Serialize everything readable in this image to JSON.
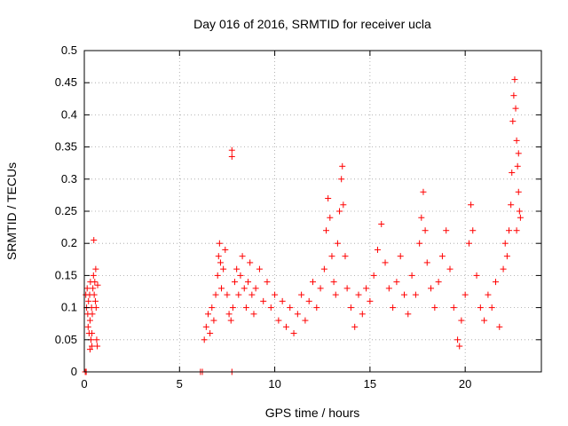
{
  "chart_data": {
    "type": "scatter",
    "title": "Day 016 of 2016, SRMTID for receiver ucla",
    "xlabel": "GPS time / hours",
    "ylabel": "SRMTID / TECUs",
    "xlim": [
      0,
      24
    ],
    "ylim": [
      0,
      0.5
    ],
    "xticks": [
      0,
      5,
      10,
      15,
      20
    ],
    "xtick_labels": [
      "0",
      "5",
      "10",
      "15",
      "20"
    ],
    "yticks": [
      0,
      0.05,
      0.1,
      0.15,
      0.2,
      0.25,
      0.3,
      0.35,
      0.4,
      0.45,
      0.5
    ],
    "ytick_labels": [
      "0",
      "0.05",
      "0.1",
      "0.15",
      "0.2",
      "0.25",
      "0.3",
      "0.35",
      "0.4",
      "0.45",
      "0.5"
    ],
    "grid": true,
    "marker": "+",
    "color": "#ff0000",
    "series": [
      {
        "points": [
          [
            0.05,
            0.0
          ],
          [
            0.1,
            0.0
          ],
          [
            0.08,
            0.12
          ],
          [
            0.12,
            0.1
          ],
          [
            0.15,
            0.13
          ],
          [
            0.18,
            0.09
          ],
          [
            0.2,
            0.07
          ],
          [
            0.22,
            0.11
          ],
          [
            0.25,
            0.06
          ],
          [
            0.28,
            0.12
          ],
          [
            0.3,
            0.08
          ],
          [
            0.32,
            0.14
          ],
          [
            0.35,
            0.05
          ],
          [
            0.38,
            0.1
          ],
          [
            0.4,
            0.06
          ],
          [
            0.42,
            0.09
          ],
          [
            0.45,
            0.13
          ],
          [
            0.48,
            0.15
          ],
          [
            0.5,
            0.205
          ],
          [
            0.52,
            0.12
          ],
          [
            0.55,
            0.14
          ],
          [
            0.58,
            0.11
          ],
          [
            0.6,
            0.16
          ],
          [
            0.62,
            0.1
          ],
          [
            0.65,
            0.05
          ],
          [
            0.68,
            0.04
          ],
          [
            0.7,
            0.135
          ],
          [
            0.3,
            0.035
          ],
          [
            0.4,
            0.04
          ],
          [
            6.1,
            0.0
          ],
          [
            6.2,
            0.0
          ],
          [
            7.75,
            0.0
          ],
          [
            6.3,
            0.05
          ],
          [
            6.4,
            0.07
          ],
          [
            6.5,
            0.09
          ],
          [
            6.6,
            0.06
          ],
          [
            6.7,
            0.1
          ],
          [
            6.8,
            0.08
          ],
          [
            6.9,
            0.12
          ],
          [
            7.0,
            0.15
          ],
          [
            7.05,
            0.18
          ],
          [
            7.1,
            0.2
          ],
          [
            7.15,
            0.17
          ],
          [
            7.2,
            0.13
          ],
          [
            7.3,
            0.16
          ],
          [
            7.4,
            0.19
          ],
          [
            7.5,
            0.12
          ],
          [
            7.6,
            0.09
          ],
          [
            7.7,
            0.08
          ],
          [
            7.75,
            0.335
          ],
          [
            7.75,
            0.345
          ],
          [
            7.8,
            0.1
          ],
          [
            7.9,
            0.14
          ],
          [
            8.0,
            0.16
          ],
          [
            8.1,
            0.12
          ],
          [
            8.2,
            0.15
          ],
          [
            8.3,
            0.18
          ],
          [
            8.4,
            0.13
          ],
          [
            8.5,
            0.1
          ],
          [
            8.6,
            0.14
          ],
          [
            8.7,
            0.17
          ],
          [
            8.8,
            0.12
          ],
          [
            8.9,
            0.09
          ],
          [
            9.0,
            0.13
          ],
          [
            9.2,
            0.16
          ],
          [
            9.4,
            0.11
          ],
          [
            9.6,
            0.14
          ],
          [
            9.8,
            0.1
          ],
          [
            10.0,
            0.12
          ],
          [
            10.2,
            0.08
          ],
          [
            10.4,
            0.11
          ],
          [
            10.6,
            0.07
          ],
          [
            10.8,
            0.1
          ],
          [
            11.0,
            0.06
          ],
          [
            11.2,
            0.09
          ],
          [
            11.4,
            0.12
          ],
          [
            11.6,
            0.08
          ],
          [
            11.8,
            0.11
          ],
          [
            12.0,
            0.14
          ],
          [
            12.2,
            0.1
          ],
          [
            12.4,
            0.13
          ],
          [
            12.6,
            0.16
          ],
          [
            12.7,
            0.22
          ],
          [
            12.8,
            0.27
          ],
          [
            12.9,
            0.24
          ],
          [
            13.0,
            0.18
          ],
          [
            13.1,
            0.14
          ],
          [
            13.2,
            0.12
          ],
          [
            13.3,
            0.2
          ],
          [
            13.4,
            0.25
          ],
          [
            13.5,
            0.3
          ],
          [
            13.55,
            0.32
          ],
          [
            13.6,
            0.26
          ],
          [
            13.7,
            0.18
          ],
          [
            13.8,
            0.13
          ],
          [
            14.0,
            0.1
          ],
          [
            14.2,
            0.07
          ],
          [
            14.4,
            0.12
          ],
          [
            14.6,
            0.09
          ],
          [
            14.8,
            0.13
          ],
          [
            15.0,
            0.11
          ],
          [
            15.2,
            0.15
          ],
          [
            15.4,
            0.19
          ],
          [
            15.6,
            0.23
          ],
          [
            15.8,
            0.17
          ],
          [
            16.0,
            0.13
          ],
          [
            16.2,
            0.1
          ],
          [
            16.4,
            0.14
          ],
          [
            16.6,
            0.18
          ],
          [
            16.8,
            0.12
          ],
          [
            17.0,
            0.09
          ],
          [
            17.2,
            0.15
          ],
          [
            17.4,
            0.12
          ],
          [
            17.6,
            0.2
          ],
          [
            17.7,
            0.24
          ],
          [
            17.8,
            0.28
          ],
          [
            17.9,
            0.22
          ],
          [
            18.0,
            0.17
          ],
          [
            18.2,
            0.13
          ],
          [
            18.4,
            0.1
          ],
          [
            18.6,
            0.14
          ],
          [
            18.8,
            0.18
          ],
          [
            19.0,
            0.22
          ],
          [
            19.2,
            0.16
          ],
          [
            19.4,
            0.1
          ],
          [
            19.6,
            0.05
          ],
          [
            19.7,
            0.04
          ],
          [
            19.8,
            0.08
          ],
          [
            20.0,
            0.12
          ],
          [
            20.2,
            0.2
          ],
          [
            20.3,
            0.26
          ],
          [
            20.4,
            0.22
          ],
          [
            20.6,
            0.15
          ],
          [
            20.8,
            0.1
          ],
          [
            21.0,
            0.08
          ],
          [
            21.2,
            0.12
          ],
          [
            21.4,
            0.1
          ],
          [
            21.6,
            0.14
          ],
          [
            21.8,
            0.07
          ],
          [
            22.0,
            0.16
          ],
          [
            22.1,
            0.2
          ],
          [
            22.2,
            0.18
          ],
          [
            22.3,
            0.22
          ],
          [
            22.4,
            0.26
          ],
          [
            22.45,
            0.31
          ],
          [
            22.5,
            0.39
          ],
          [
            22.55,
            0.43
          ],
          [
            22.6,
            0.455
          ],
          [
            22.65,
            0.41
          ],
          [
            22.7,
            0.36
          ],
          [
            22.75,
            0.32
          ],
          [
            22.8,
            0.28
          ],
          [
            22.85,
            0.25
          ],
          [
            22.9,
            0.24
          ],
          [
            22.7,
            0.22
          ],
          [
            22.8,
            0.34
          ]
        ]
      }
    ]
  }
}
